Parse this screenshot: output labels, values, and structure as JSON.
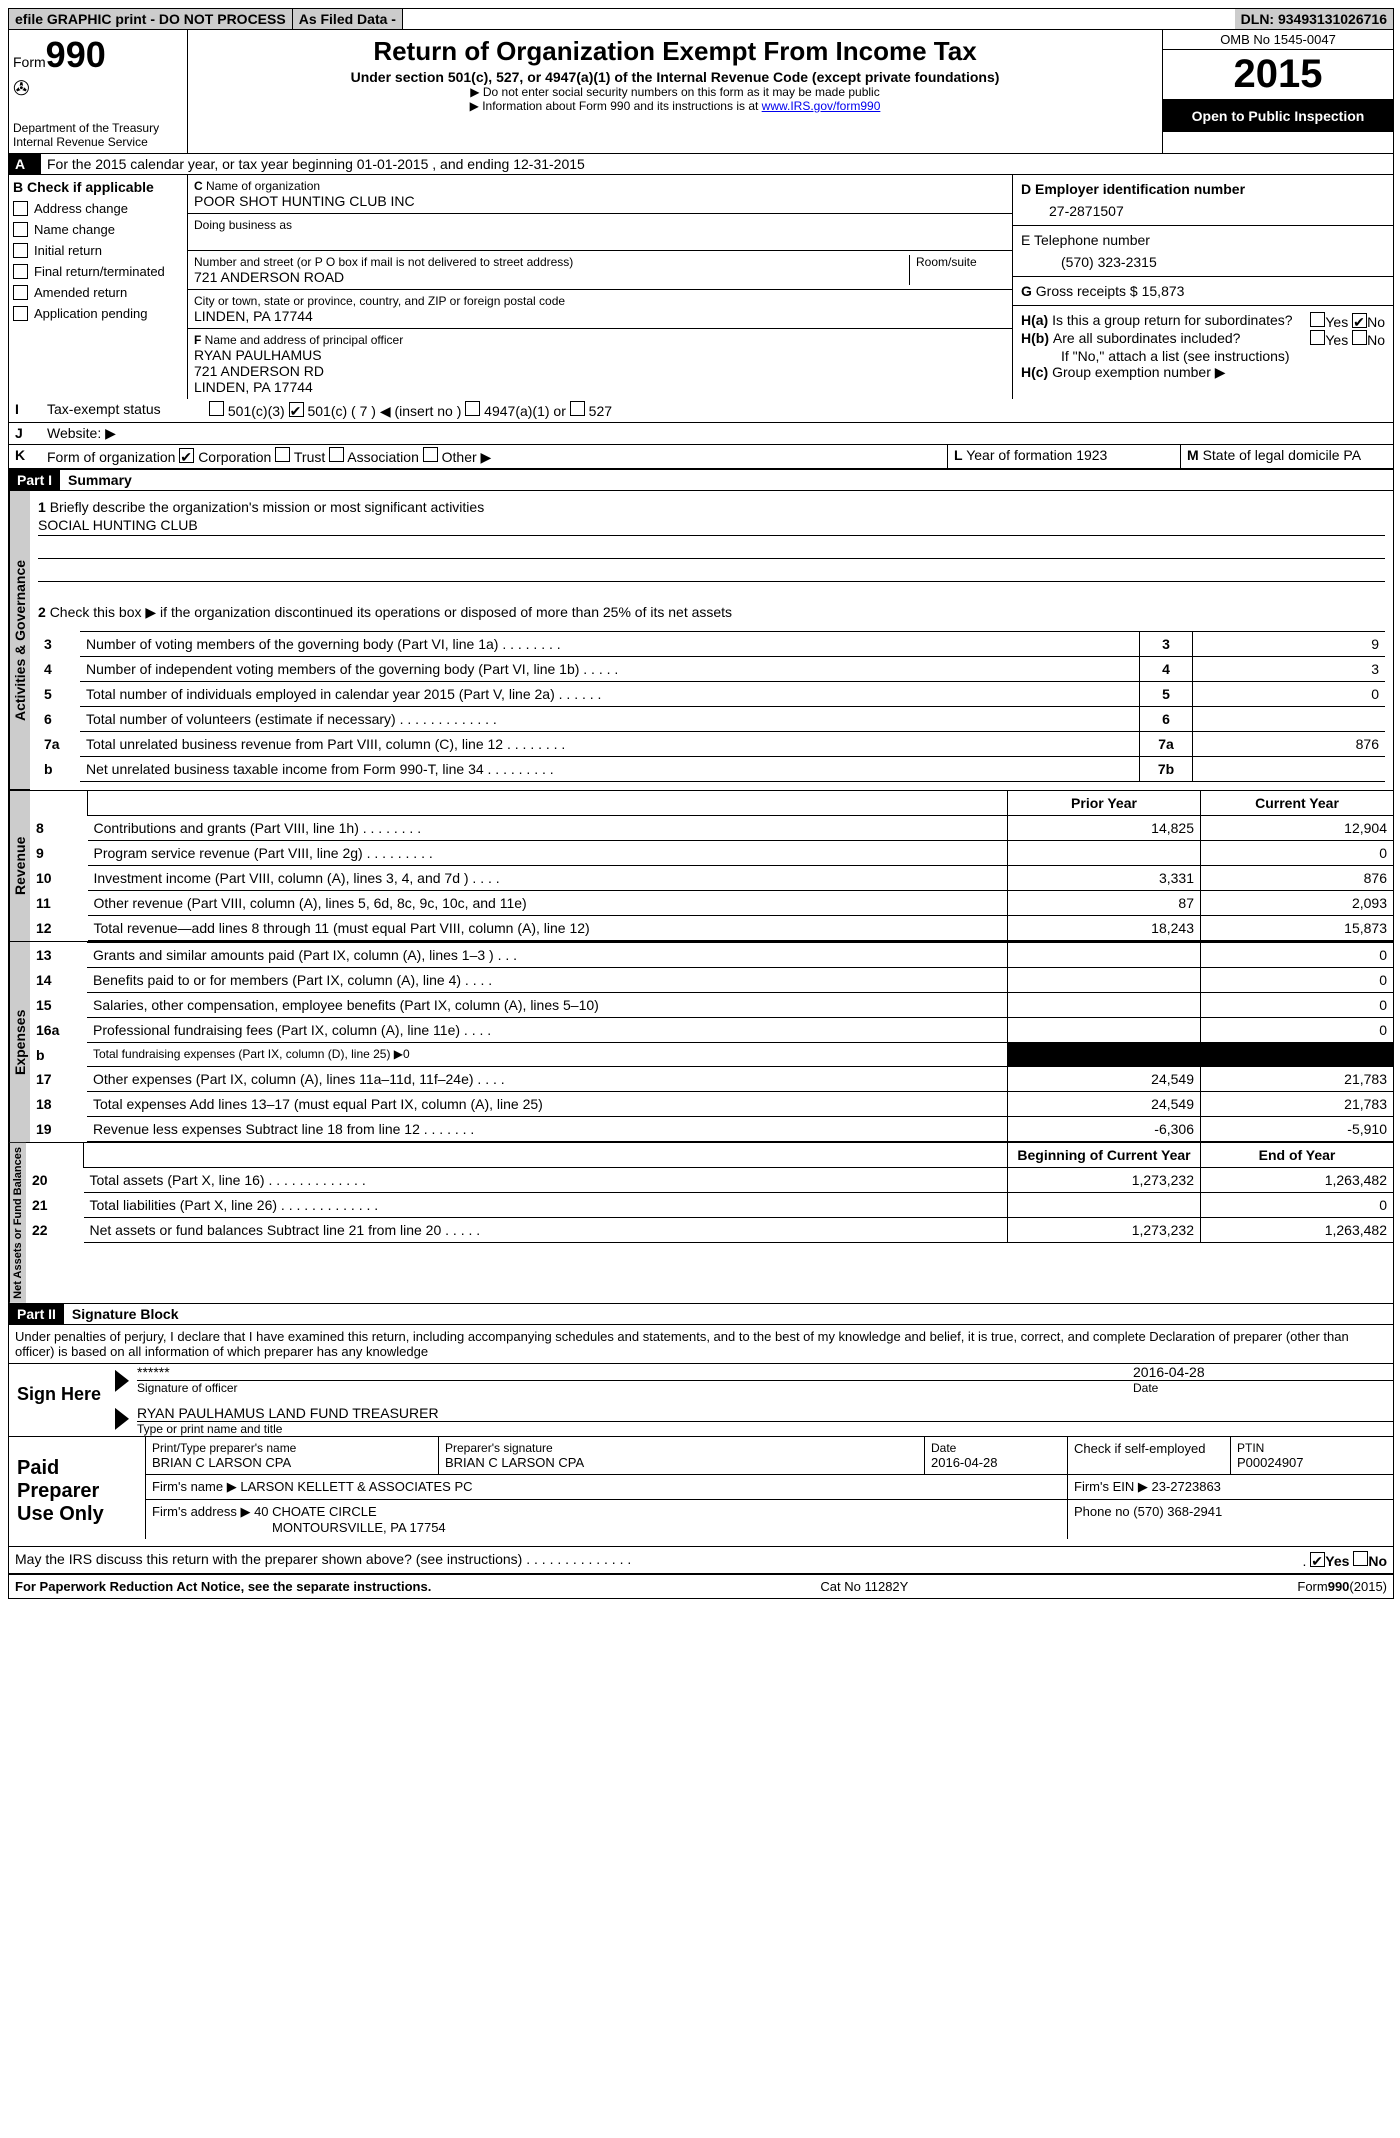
{
  "top": {
    "efile": "efile GRAPHIC print - DO NOT PROCESS",
    "asfiled": "As Filed Data -",
    "dln": "DLN: 93493131026716"
  },
  "header": {
    "form": "Form",
    "formnum": "990",
    "dept1": "Department of the Treasury",
    "dept2": "Internal Revenue Service",
    "title": "Return of Organization Exempt From Income Tax",
    "subtitle": "Under section 501(c), 527, or 4947(a)(1) of the Internal Revenue Code (except private foundations)",
    "note1": "▶ Do not enter social security numbers on this form as it may be made public",
    "note2": "▶ Information about Form 990 and its instructions is at ",
    "irs_link": "www.IRS.gov/form990",
    "omb": "OMB No 1545-0047",
    "year": "2015",
    "otp": "Open to Public Inspection"
  },
  "sectionA": {
    "lineA": "For the 2015 calendar year, or tax year beginning 01-01-2015    , and ending 12-31-2015",
    "B_label": "Check if applicable",
    "B_items": [
      "Address change",
      "Name change",
      "Initial return",
      "Final return/terminated",
      "Amended return",
      "Application pending"
    ],
    "C_label": "Name of organization",
    "C_name": "POOR SHOT HUNTING CLUB INC",
    "dba_label": "Doing business as",
    "street_label": "Number and street (or P O  box if mail is not delivered to street address)",
    "room_label": "Room/suite",
    "street": "721 ANDERSON ROAD",
    "city_label": "City or town, state or province, country, and ZIP or foreign postal code",
    "city": "LINDEN, PA  17744",
    "F_label": "Name and address of principal officer",
    "F_name": "RYAN PAULHAMUS",
    "F_street": "721 ANDERSON RD",
    "F_city": "LINDEN, PA  17744",
    "D_label": "Employer identification number",
    "D_ein": "27-2871507",
    "E_label": "E Telephone number",
    "E_phone": "(570) 323-2315",
    "G_label": "Gross receipts $",
    "G_val": "15,873",
    "Ha_label": "Is this a group return for subordinates?",
    "Hb_label": "Are all subordinates included?",
    "H_note": "If \"No,\" attach a list  (see instructions)",
    "Hc_label": "Group exemption number ▶",
    "yes": "Yes",
    "no": "No"
  },
  "taxexempt": {
    "label": "Tax-exempt status",
    "opt1": "501(c)(3)",
    "opt2": "501(c) ( 7 ) ◀ (insert no )",
    "opt3": "4947(a)(1) or",
    "opt4": "527"
  },
  "website_label": "Website: ▶",
  "formorg": {
    "label": "Form of organization",
    "corp": "Corporation",
    "trust": "Trust",
    "assoc": "Association",
    "other": "Other ▶",
    "L_label": "Year of formation  1923",
    "M_label": "State of legal domicile  PA"
  },
  "part1": {
    "label": "Part I",
    "title": "Summary",
    "line1": "Briefly describe the organization's mission or most significant activities",
    "mission": "SOCIAL HUNTING CLUB",
    "line2": "Check this box ▶      if the organization discontinued its operations or disposed of more than 25% of its net assets",
    "rows": [
      {
        "n": "3",
        "label": "Number of voting members of the governing body (Part VI, line 1a)  .    .    .    .    .    .    .    .",
        "col": "3",
        "val": "9"
      },
      {
        "n": "4",
        "label": "Number of independent voting members of the governing body (Part VI, line 1b)    .    .    .    .    .",
        "col": "4",
        "val": "3"
      },
      {
        "n": "5",
        "label": "Total number of individuals employed in calendar year 2015 (Part V, line 2a)    .    .    .    .    .    .",
        "col": "5",
        "val": "0"
      },
      {
        "n": "6",
        "label": "Total number of volunteers (estimate if necessary)    .    .    .    .    .    .    .    .    .    .    .    .    .",
        "col": "6",
        "val": ""
      },
      {
        "n": "7a",
        "label": "Total unrelated business revenue from Part VIII, column (C), line 12    .    .    .    .    .    .    .    .",
        "col": "7a",
        "val": "876"
      },
      {
        "n": "b",
        "label": "Net unrelated business taxable income from Form 990-T, line 34    .    .    .    .    .    .    .    .    .",
        "col": "7b",
        "val": ""
      }
    ],
    "col_prior": "Prior Year",
    "col_current": "Current Year",
    "revenue": [
      {
        "n": "8",
        "label": "Contributions and grants (Part VIII, line 1h)    .    .    .    .    .    .    .    .",
        "p": "14,825",
        "c": "12,904"
      },
      {
        "n": "9",
        "label": "Program service revenue (Part VIII, line 2g)  .    .    .    .    .    .    .    .    .",
        "p": "",
        "c": "0"
      },
      {
        "n": "10",
        "label": "Investment income (Part VIII, column (A), lines 3, 4, and 7d )    .    .    .    .",
        "p": "3,331",
        "c": "876"
      },
      {
        "n": "11",
        "label": "Other revenue (Part VIII, column (A), lines 5, 6d, 8c, 9c, 10c, and 11e)",
        "p": "87",
        "c": "2,093"
      },
      {
        "n": "12",
        "label": "Total revenue—add lines 8 through 11 (must equal Part VIII, column (A), line 12)",
        "p": "18,243",
        "c": "15,873"
      }
    ],
    "expenses": [
      {
        "n": "13",
        "label": "Grants and similar amounts paid (Part IX, column (A), lines 1–3 )    .    .    .",
        "p": "",
        "c": "0"
      },
      {
        "n": "14",
        "label": "Benefits paid to or for members (Part IX, column (A), line 4)    .    .    .    .",
        "p": "",
        "c": "0"
      },
      {
        "n": "15",
        "label": "Salaries, other compensation, employee benefits (Part IX, column (A), lines 5–10)",
        "p": "",
        "c": "0"
      },
      {
        "n": "16a",
        "label": "Professional fundraising fees (Part IX, column (A), line 11e)    .    .    .    .",
        "p": "",
        "c": "0"
      },
      {
        "n": "b",
        "label": "Total fundraising expenses (Part IX, column (D), line 25) ▶0",
        "p": "BLACK",
        "c": "BLACK"
      },
      {
        "n": "17",
        "label": "Other expenses (Part IX, column (A), lines 11a–11d, 11f–24e)    .    .    .    .",
        "p": "24,549",
        "c": "21,783"
      },
      {
        "n": "18",
        "label": "Total expenses  Add lines 13–17 (must equal Part IX, column (A), line 25)",
        "p": "24,549",
        "c": "21,783"
      },
      {
        "n": "19",
        "label": "Revenue less expenses  Subtract line 18 from line 12    .    .    .    .    .    .    .",
        "p": "-6,306",
        "c": "-5,910"
      }
    ],
    "col_boy": "Beginning of Current Year",
    "col_eoy": "End of Year",
    "netassets": [
      {
        "n": "20",
        "label": "Total assets (Part X, line 16)    .    .    .    .    .    .    .    .    .    .    .    .    .",
        "p": "1,273,232",
        "c": "1,263,482"
      },
      {
        "n": "21",
        "label": "Total liabilities (Part X, line 26)  .    .    .    .    .    .    .    .    .    .    .    .    .",
        "p": "",
        "c": "0"
      },
      {
        "n": "22",
        "label": "Net assets or fund balances  Subtract line 21 from line 20    .    .    .    .    .",
        "p": "1,273,232",
        "c": "1,263,482"
      }
    ],
    "vert_ag": "Activities & Governance",
    "vert_rev": "Revenue",
    "vert_exp": "Expenses",
    "vert_na": "Net Assets or Fund Balances"
  },
  "part2": {
    "label": "Part II",
    "title": "Signature Block",
    "perjury": "Under penalties of perjury, I declare that I have examined this return, including accompanying schedules and statements, and to the best of my knowledge and belief, it is true, correct, and complete  Declaration of preparer (other than officer) is based on all information of which preparer has any knowledge",
    "sign": "Sign Here",
    "stars": "******",
    "sig_label": "Signature of officer",
    "date_label": "Date",
    "date": "2016-04-28",
    "officer": "RYAN PAULHAMUS LAND FUND TREASURER",
    "type_label": "Type or print name and title",
    "paid": "Paid Preparer Use Only",
    "p_name_label": "Print/Type preparer's name",
    "p_name": "BRIAN C LARSON CPA",
    "p_sig_label": "Preparer's signature",
    "p_sig": "BRIAN C LARSON CPA",
    "p_date": "2016-04-28",
    "p_check": "Check       if self-employed",
    "p_ptin_label": "PTIN",
    "p_ptin": "P00024907",
    "firm_name_label": "Firm's name      ▶",
    "firm_name": "LARSON KELLETT & ASSOCIATES PC",
    "firm_ein_label": "Firm's EIN ▶",
    "firm_ein": "23-2723863",
    "firm_addr_label": "Firm's address ▶",
    "firm_addr1": "40 CHOATE CIRCLE",
    "firm_addr2": "MONTOURSVILLE, PA  17754",
    "firm_phone_label": "Phone no",
    "firm_phone": "(570) 368-2941",
    "may_irs": "May the IRS discuss this return with the preparer shown above? (see instructions)    .    .    .    .    .    .    .    .    .    .    .    .    .    .  "
  },
  "footer": {
    "left": "For Paperwork Reduction Act Notice, see the separate instructions.",
    "mid": "Cat No  11282Y",
    "right": "Form990(2015)"
  }
}
